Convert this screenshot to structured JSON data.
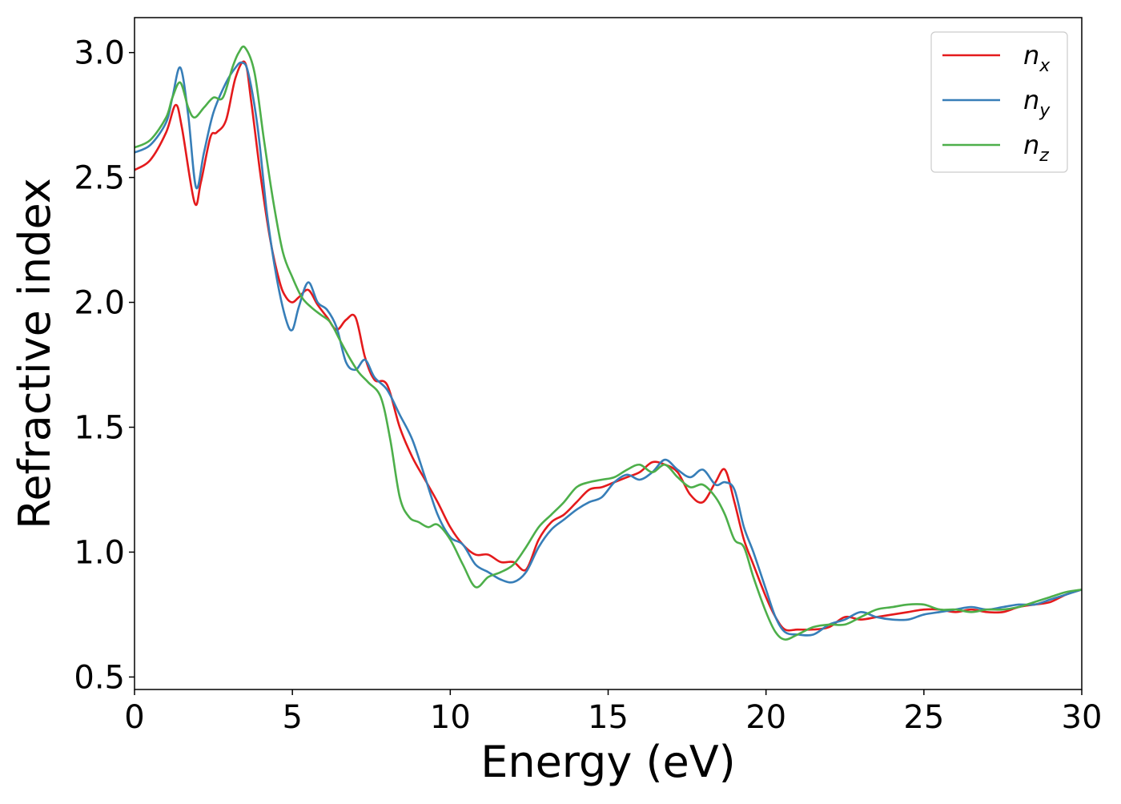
{
  "chart_data": {
    "type": "line",
    "title": "",
    "xlabel": "Energy (eV)",
    "ylabel": "Refractive index",
    "xlim": [
      0,
      30
    ],
    "ylim": [
      0.45,
      3.14
    ],
    "xticks": [
      0,
      5,
      10,
      15,
      20,
      25,
      30
    ],
    "xtick_labels": [
      "0",
      "5",
      "10",
      "15",
      "20",
      "25",
      "30"
    ],
    "yticks": [
      0.5,
      1.0,
      1.5,
      2.0,
      2.5,
      3.0
    ],
    "ytick_labels": [
      "0.5",
      "1.0",
      "1.5",
      "2.0",
      "2.5",
      "3.0"
    ],
    "grid": false,
    "legend_position": "top-right",
    "series": [
      {
        "name": "n",
        "name_subscript": "x",
        "color": "#e41a1c",
        "x": [
          0,
          0.5,
          1.0,
          1.3,
          1.5,
          1.9,
          2.1,
          2.4,
          2.6,
          2.9,
          3.2,
          3.5,
          3.7,
          4.0,
          4.3,
          4.6,
          4.8,
          5.0,
          5.2,
          5.5,
          5.8,
          6.1,
          6.4,
          6.7,
          7.0,
          7.3,
          7.6,
          8.0,
          8.4,
          8.8,
          9.2,
          9.6,
          10.0,
          10.4,
          10.8,
          11.2,
          11.6,
          12.0,
          12.4,
          12.8,
          13.2,
          13.6,
          14.0,
          14.4,
          14.8,
          15.2,
          15.6,
          16.0,
          16.4,
          16.8,
          17.2,
          17.6,
          18.0,
          18.4,
          18.7,
          19.0,
          19.3,
          19.6,
          20.0,
          20.3,
          20.6,
          21.0,
          21.5,
          22.0,
          22.5,
          23.0,
          23.5,
          24.0,
          24.5,
          25.0,
          25.5,
          26.0,
          26.5,
          27.0,
          27.5,
          28.0,
          28.5,
          29.0,
          29.5,
          30.0
        ],
        "y": [
          2.53,
          2.57,
          2.68,
          2.79,
          2.7,
          2.4,
          2.48,
          2.66,
          2.68,
          2.73,
          2.9,
          2.96,
          2.8,
          2.5,
          2.25,
          2.08,
          2.02,
          2.0,
          2.02,
          2.05,
          1.99,
          1.94,
          1.89,
          1.93,
          1.94,
          1.78,
          1.69,
          1.67,
          1.5,
          1.38,
          1.29,
          1.2,
          1.1,
          1.03,
          0.99,
          0.99,
          0.96,
          0.96,
          0.93,
          1.05,
          1.12,
          1.15,
          1.2,
          1.25,
          1.26,
          1.28,
          1.3,
          1.32,
          1.36,
          1.35,
          1.32,
          1.23,
          1.2,
          1.28,
          1.33,
          1.2,
          1.05,
          0.95,
          0.82,
          0.74,
          0.69,
          0.69,
          0.69,
          0.7,
          0.74,
          0.73,
          0.74,
          0.75,
          0.76,
          0.77,
          0.77,
          0.76,
          0.77,
          0.76,
          0.76,
          0.78,
          0.79,
          0.8,
          0.83,
          0.85
        ]
      },
      {
        "name": "n",
        "name_subscript": "y",
        "color": "#377eb8",
        "x": [
          0,
          0.5,
          1.0,
          1.2,
          1.45,
          1.7,
          1.95,
          2.2,
          2.5,
          2.9,
          3.2,
          3.4,
          3.6,
          3.9,
          4.2,
          4.5,
          4.8,
          5.0,
          5.2,
          5.5,
          5.8,
          6.1,
          6.4,
          6.7,
          7.0,
          7.3,
          7.6,
          8.0,
          8.4,
          8.8,
          9.2,
          9.6,
          10.0,
          10.4,
          10.8,
          11.2,
          11.6,
          12.0,
          12.4,
          12.8,
          13.2,
          13.6,
          14.0,
          14.4,
          14.8,
          15.2,
          15.6,
          16.0,
          16.4,
          16.8,
          17.2,
          17.6,
          18.0,
          18.4,
          18.7,
          19.0,
          19.3,
          19.6,
          20.0,
          20.3,
          20.6,
          21.0,
          21.5,
          22.0,
          22.5,
          23.0,
          23.5,
          24.0,
          24.5,
          25.0,
          25.5,
          26.0,
          26.5,
          27.0,
          27.5,
          28.0,
          28.5,
          29.0,
          29.5,
          30.0
        ],
        "y": [
          2.6,
          2.63,
          2.72,
          2.82,
          2.94,
          2.75,
          2.46,
          2.6,
          2.76,
          2.88,
          2.94,
          2.96,
          2.92,
          2.7,
          2.35,
          2.1,
          1.93,
          1.89,
          1.98,
          2.08,
          2.0,
          1.97,
          1.9,
          1.76,
          1.73,
          1.77,
          1.7,
          1.65,
          1.55,
          1.45,
          1.3,
          1.15,
          1.06,
          1.03,
          0.95,
          0.92,
          0.89,
          0.88,
          0.92,
          1.02,
          1.09,
          1.13,
          1.17,
          1.2,
          1.22,
          1.28,
          1.31,
          1.29,
          1.32,
          1.37,
          1.33,
          1.3,
          1.33,
          1.27,
          1.28,
          1.25,
          1.1,
          1.0,
          0.85,
          0.74,
          0.68,
          0.67,
          0.67,
          0.71,
          0.73,
          0.76,
          0.74,
          0.73,
          0.73,
          0.75,
          0.76,
          0.77,
          0.78,
          0.77,
          0.78,
          0.79,
          0.79,
          0.81,
          0.83,
          0.85
        ]
      },
      {
        "name": "n",
        "name_subscript": "z",
        "color": "#4daf4a",
        "x": [
          0,
          0.5,
          1.0,
          1.2,
          1.45,
          1.7,
          1.9,
          2.2,
          2.5,
          2.8,
          3.1,
          3.3,
          3.5,
          3.8,
          4.1,
          4.4,
          4.7,
          5.0,
          5.3,
          5.6,
          5.9,
          6.2,
          6.5,
          6.8,
          7.1,
          7.4,
          7.8,
          8.1,
          8.4,
          8.7,
          9.0,
          9.3,
          9.6,
          10.0,
          10.4,
          10.8,
          11.2,
          11.6,
          12.0,
          12.4,
          12.8,
          13.2,
          13.6,
          14.0,
          14.4,
          14.8,
          15.2,
          15.6,
          16.0,
          16.4,
          16.8,
          17.2,
          17.6,
          18.0,
          18.4,
          18.7,
          19.0,
          19.3,
          19.6,
          20.0,
          20.3,
          20.6,
          21.0,
          21.5,
          22.0,
          22.5,
          23.0,
          23.5,
          24.0,
          24.5,
          25.0,
          25.5,
          26.0,
          26.5,
          27.0,
          27.5,
          28.0,
          28.5,
          29.0,
          29.5,
          30.0
        ],
        "y": [
          2.62,
          2.65,
          2.74,
          2.82,
          2.88,
          2.78,
          2.74,
          2.78,
          2.82,
          2.82,
          2.94,
          3.0,
          3.02,
          2.92,
          2.65,
          2.4,
          2.2,
          2.1,
          2.02,
          1.98,
          1.95,
          1.92,
          1.85,
          1.78,
          1.72,
          1.68,
          1.62,
          1.45,
          1.22,
          1.14,
          1.12,
          1.1,
          1.11,
          1.05,
          0.95,
          0.86,
          0.9,
          0.92,
          0.95,
          1.02,
          1.1,
          1.15,
          1.2,
          1.26,
          1.28,
          1.29,
          1.3,
          1.33,
          1.35,
          1.32,
          1.35,
          1.3,
          1.26,
          1.27,
          1.22,
          1.15,
          1.05,
          1.02,
          0.9,
          0.76,
          0.68,
          0.65,
          0.67,
          0.7,
          0.71,
          0.71,
          0.74,
          0.77,
          0.78,
          0.79,
          0.79,
          0.77,
          0.77,
          0.76,
          0.77,
          0.77,
          0.78,
          0.8,
          0.82,
          0.84,
          0.85
        ]
      }
    ]
  }
}
